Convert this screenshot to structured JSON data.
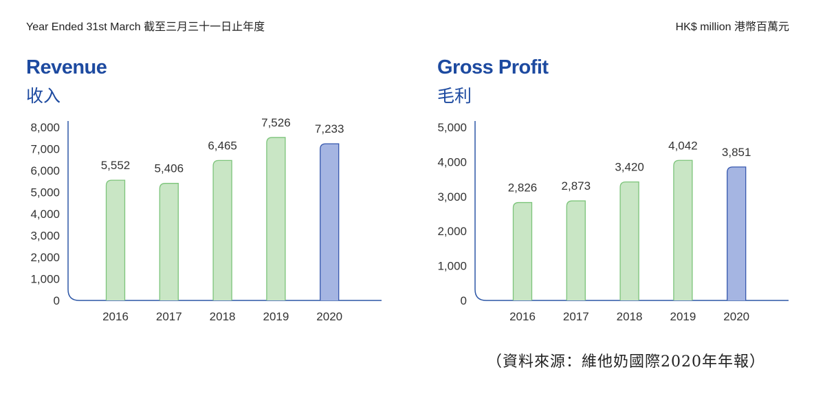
{
  "header": {
    "left": "Year Ended 31st March 截至三月三十一日止年度",
    "right": "HK$ million 港幣百萬元"
  },
  "source": "（資料來源：維他奶國際2020年年報）",
  "colors": {
    "title": "#1d4aa0",
    "bar_fill": "#c9e6c5",
    "bar_stroke": "#7cc47a",
    "highlight_fill": "#a5b5e2",
    "highlight_stroke": "#3556ad",
    "axis": "#2c56a6"
  },
  "chart_data": [
    {
      "type": "bar",
      "title": "Revenue",
      "subtitle": "收入",
      "categories": [
        "2016",
        "2017",
        "2018",
        "2019",
        "2020"
      ],
      "values": [
        5552,
        5406,
        6465,
        7526,
        7233
      ],
      "value_labels": [
        "5,552",
        "5,406",
        "6,465",
        "7,526",
        "7,233"
      ],
      "yticks": [
        "0",
        "1,000",
        "2,000",
        "3,000",
        "4,000",
        "5,000",
        "6,000",
        "7,000",
        "8,000"
      ],
      "ylim": [
        0,
        8000
      ],
      "highlight": "2020",
      "grid": false
    },
    {
      "type": "bar",
      "title": "Gross Profit",
      "subtitle": "毛利",
      "categories": [
        "2016",
        "2017",
        "2018",
        "2019",
        "2020"
      ],
      "values": [
        2826,
        2873,
        3420,
        4042,
        3851
      ],
      "value_labels": [
        "2,826",
        "2,873",
        "3,420",
        "4,042",
        "3,851"
      ],
      "yticks": [
        "0",
        "1,000",
        "2,000",
        "3,000",
        "4,000",
        "5,000"
      ],
      "ylim": [
        0,
        5000
      ],
      "highlight": "2020",
      "grid": false
    }
  ]
}
